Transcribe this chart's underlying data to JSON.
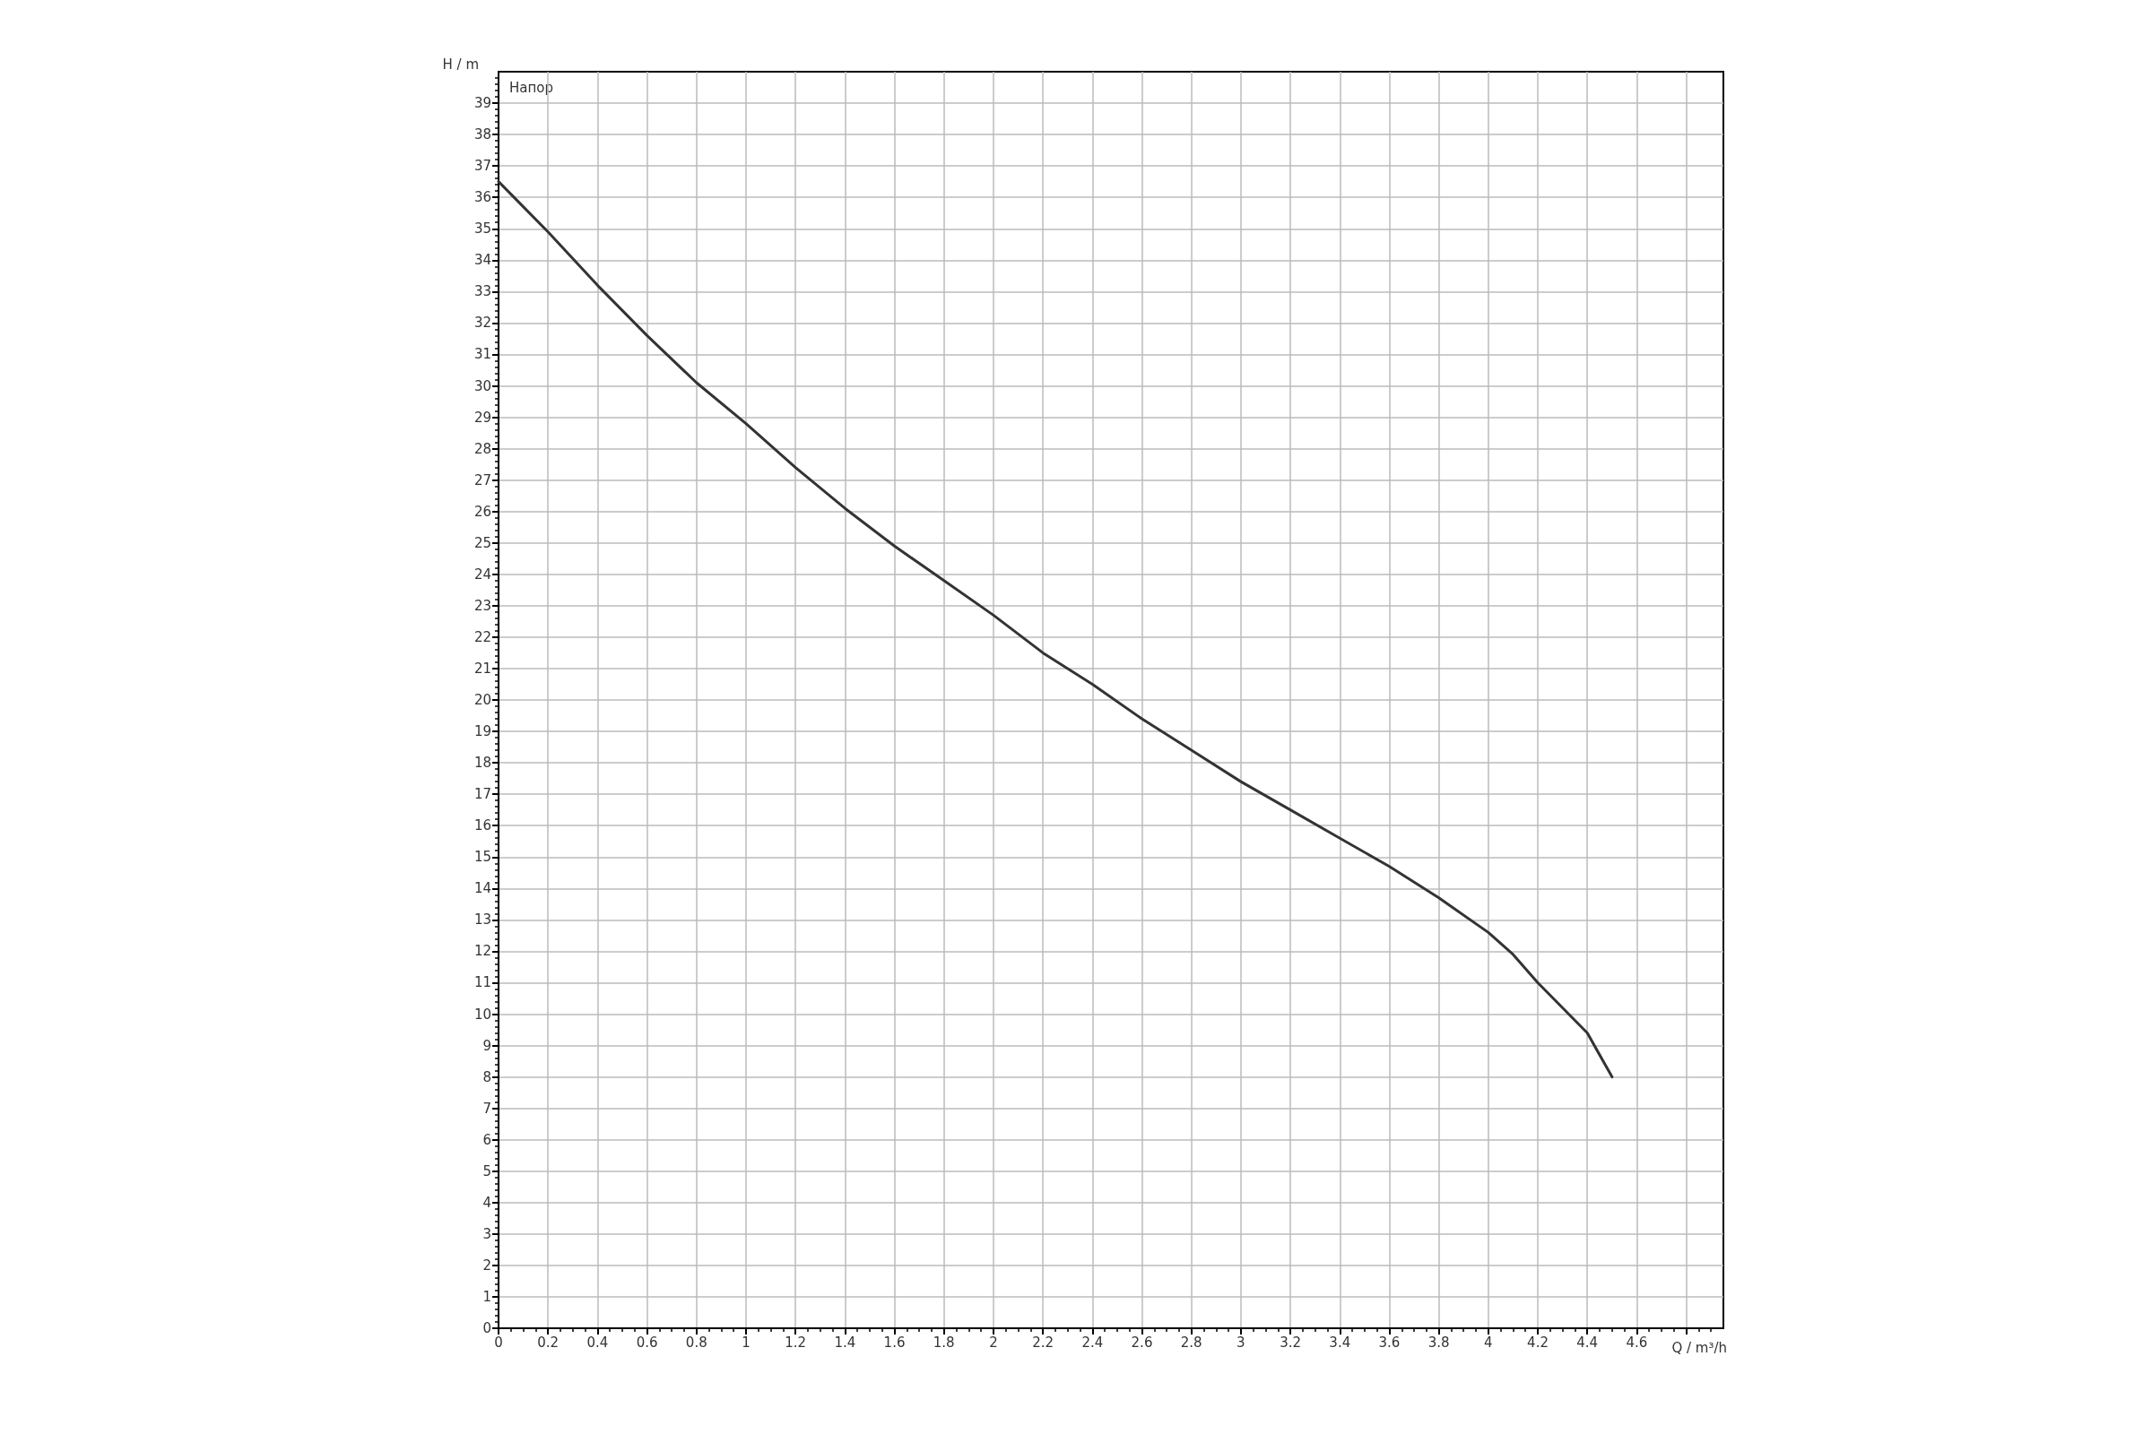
{
  "chart_data": {
    "type": "line",
    "xlabel": "Q / m³/h",
    "ylabel": "H / m",
    "annotations": [
      "Напор"
    ],
    "x": [
      0,
      0.2,
      0.4,
      0.6,
      0.8,
      1,
      1.2,
      1.4,
      1.6,
      1.8,
      2,
      2.2,
      2.4,
      2.6,
      2.8,
      3,
      3.2,
      3.4,
      3.6,
      3.8,
      4,
      4.1,
      4.2,
      4.3,
      4.4,
      4.5
    ],
    "series": [
      {
        "color": "#333333",
        "values": [
          36.5,
          34.9,
          33.2,
          31.6,
          30.1,
          28.8,
          27.4,
          26.1,
          24.9,
          23.8,
          22.7,
          21.5,
          20.5,
          19.4,
          18.4,
          17.4,
          16.5,
          15.6,
          14.7,
          13.7,
          12.6,
          11.9,
          11.0,
          10.2,
          9.4,
          8.0
        ]
      }
    ],
    "xlim": [
      0,
      4.95
    ],
    "ylim": [
      0,
      40
    ],
    "xticks": [
      0,
      0.2,
      0.4,
      0.6,
      0.8,
      1,
      1.2,
      1.4,
      1.6,
      1.8,
      2,
      2.2,
      2.4,
      2.6,
      2.8,
      3,
      3.2,
      3.4,
      3.6,
      3.8,
      4,
      4.2,
      4.4,
      4.6,
      {
        "value": 4.8,
        "label": null
      }
    ],
    "yticks": [
      0,
      1,
      2,
      3,
      4,
      5,
      6,
      7,
      8,
      9,
      10,
      11,
      12,
      13,
      14,
      15,
      16,
      17,
      18,
      19,
      20,
      21,
      22,
      23,
      24,
      25,
      26,
      27,
      28,
      29,
      30,
      31,
      32,
      33,
      34,
      35,
      36,
      37,
      38,
      39
    ],
    "grid": true,
    "marker": "none",
    "line_style": "solid"
  }
}
